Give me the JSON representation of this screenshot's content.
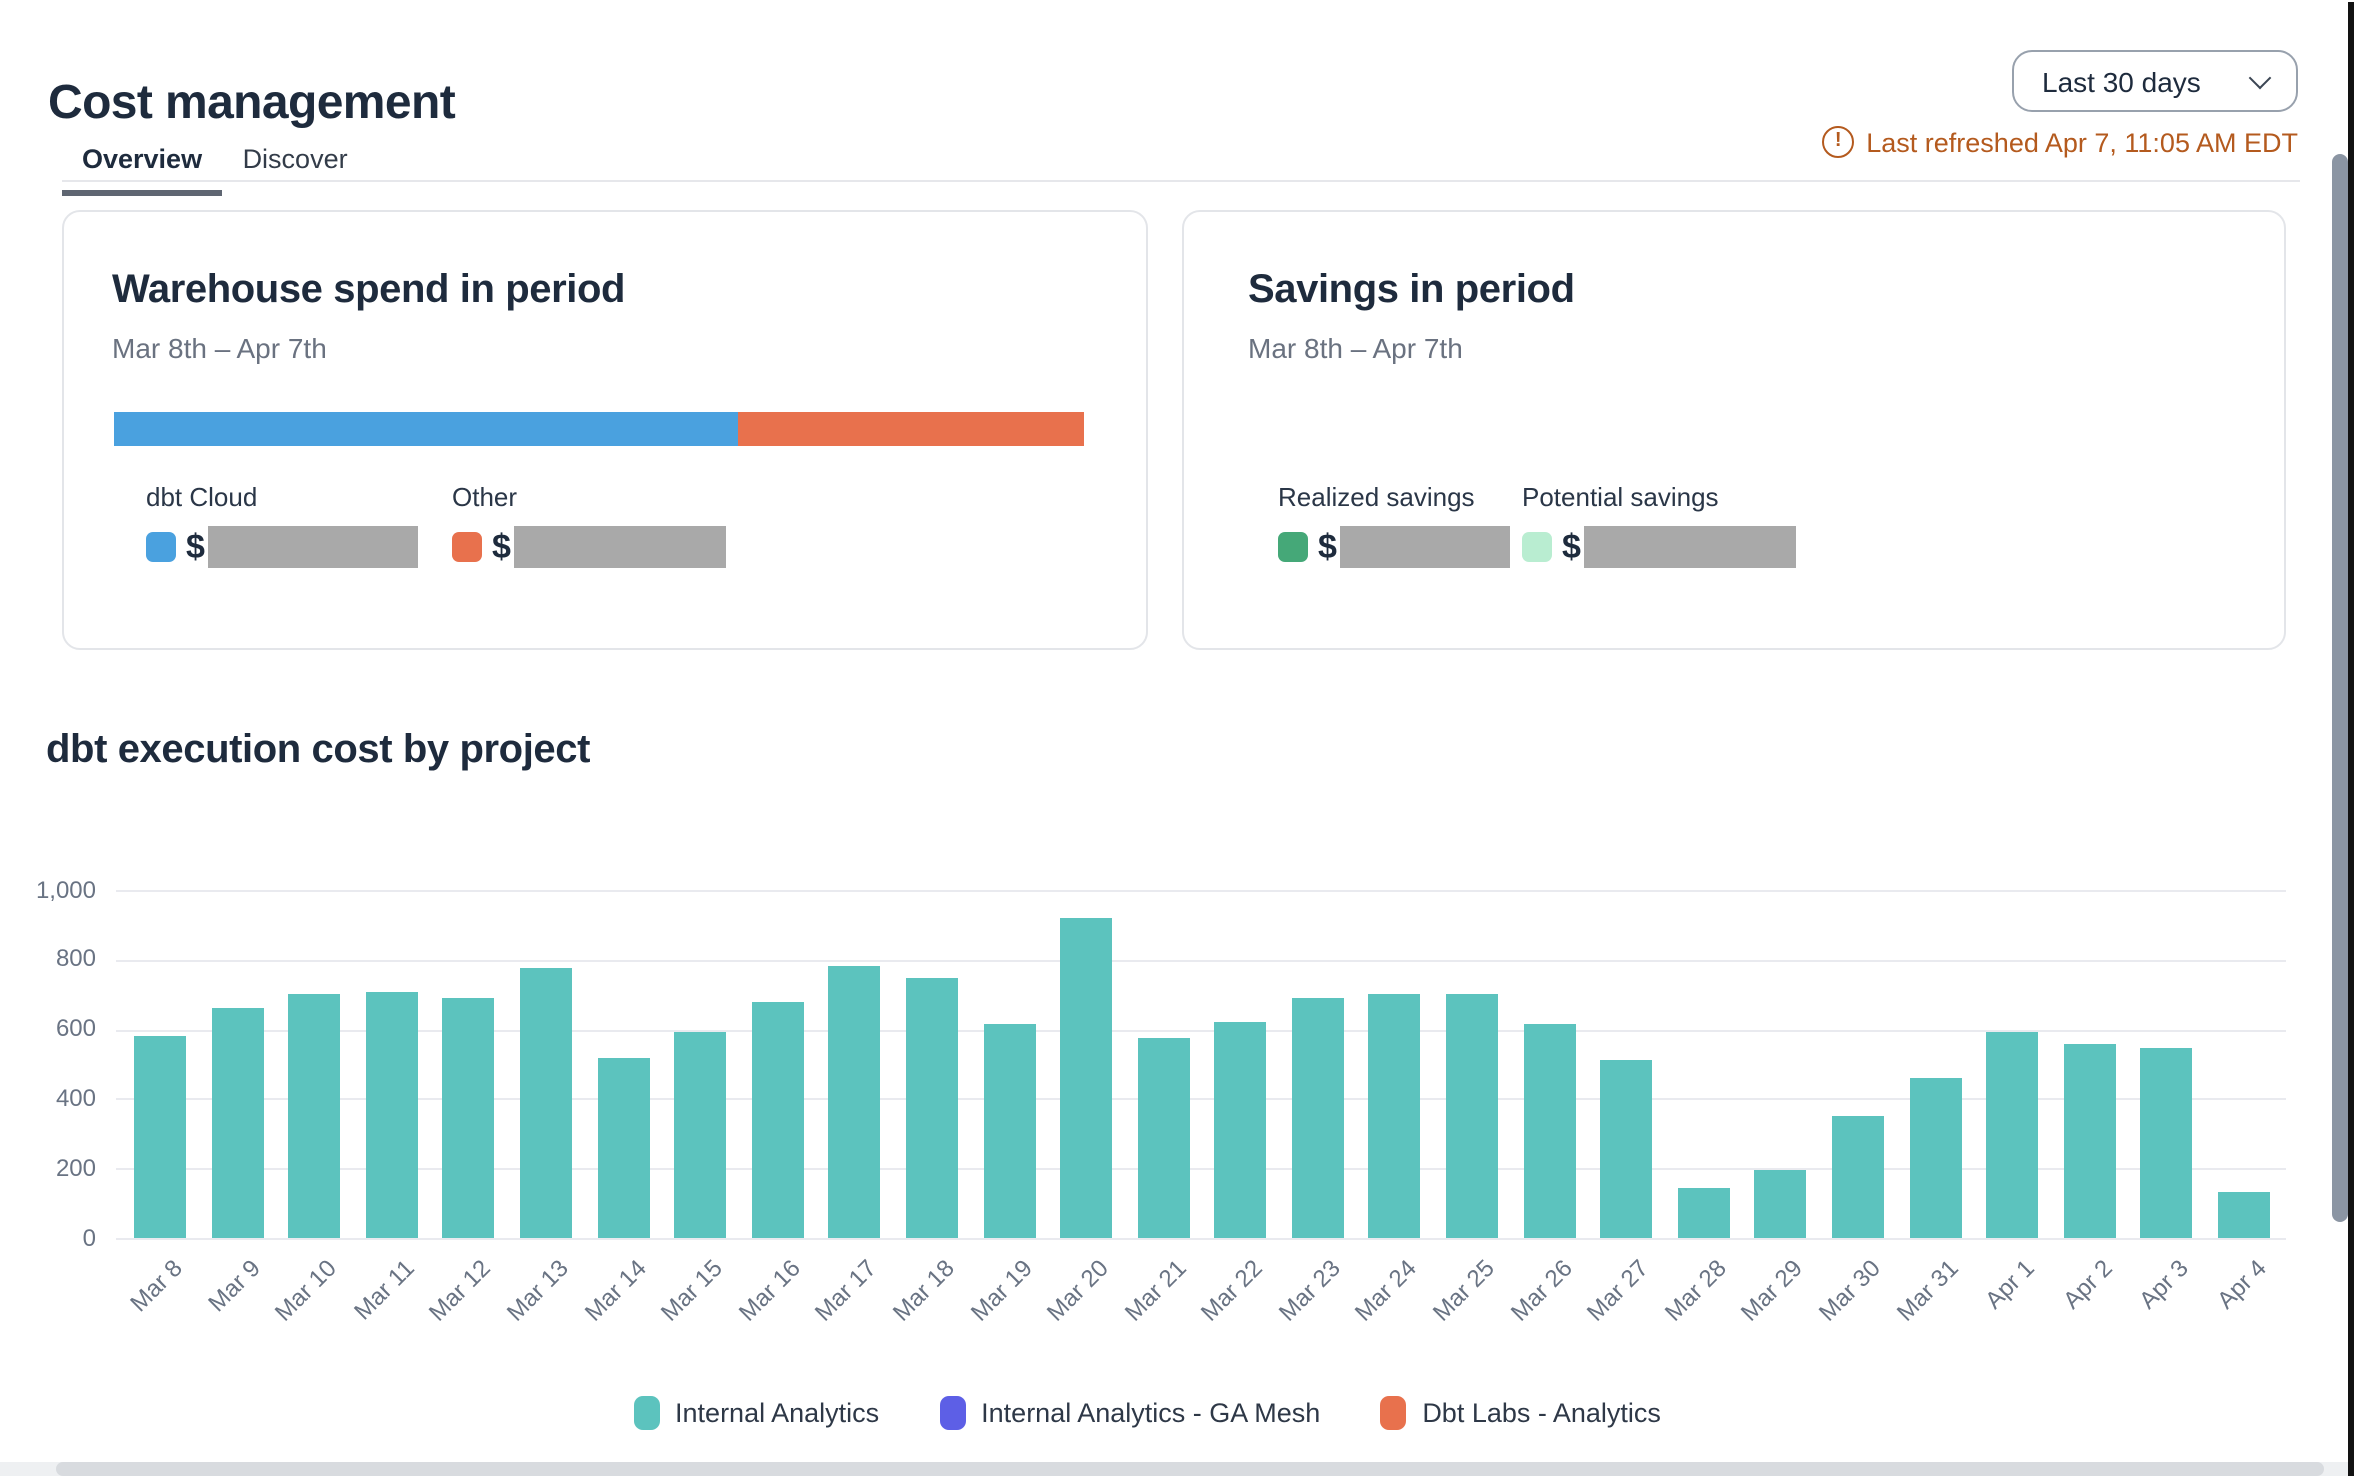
{
  "header": {
    "title": "Cost management",
    "period_select": {
      "value": "Last 30 days"
    },
    "last_refreshed": "Last refreshed Apr 7, 11:05 AM EDT"
  },
  "tabs": {
    "overview": "Overview",
    "discover": "Discover"
  },
  "warehouse_card": {
    "title": "Warehouse spend in period",
    "subtitle": "Mar 8th – Apr 7th",
    "bar_segments": [
      {
        "name": "dbt Cloud",
        "color": "#4aa1df",
        "percent": 64.4
      },
      {
        "name": "Other",
        "color": "#e8714d",
        "percent": 35.6
      }
    ],
    "metrics": [
      {
        "label": "dbt Cloud",
        "swatch_color": "#4aa1df",
        "currency": "$",
        "value": "",
        "redacted": true
      },
      {
        "label": "Other",
        "swatch_color": "#e8714d",
        "currency": "$",
        "value": "",
        "redacted": true
      }
    ]
  },
  "savings_card": {
    "title": "Savings in period",
    "subtitle": "Mar 8th – Apr 7th",
    "metrics": [
      {
        "label": "Realized savings",
        "swatch_color": "#45a878",
        "currency": "$",
        "value": "",
        "redacted": true
      },
      {
        "label": "Potential savings",
        "swatch_color": "#b9edd1",
        "currency": "$",
        "value": "",
        "redacted": true
      }
    ]
  },
  "chart_data": {
    "type": "bar",
    "title": "dbt execution cost by project",
    "categories": [
      "Mar 8",
      "Mar 9",
      "Mar 10",
      "Mar 11",
      "Mar 12",
      "Mar 13",
      "Mar 14",
      "Mar 15",
      "Mar 16",
      "Mar 17",
      "Mar 18",
      "Mar 19",
      "Mar 20",
      "Mar 21",
      "Mar 22",
      "Mar 23",
      "Mar 24",
      "Mar 25",
      "Mar 26",
      "Mar 27",
      "Mar 28",
      "Mar 29",
      "Mar 30",
      "Mar 31",
      "Apr 1",
      "Apr 2",
      "Apr 3",
      "Apr 4"
    ],
    "series": [
      {
        "name": "Internal Analytics",
        "color": "#5cc3be",
        "values": [
          580,
          660,
          700,
          705,
          690,
          775,
          515,
          590,
          680,
          780,
          745,
          615,
          920,
          575,
          620,
          690,
          700,
          700,
          615,
          510,
          145,
          195,
          350,
          460,
          590,
          555,
          545,
          135
        ]
      },
      {
        "name": "Internal Analytics - GA Mesh",
        "color": "#5d5fe6",
        "values": [
          0,
          0,
          0,
          0,
          0,
          0,
          0,
          0,
          0,
          0,
          0,
          0,
          0,
          0,
          0,
          0,
          0,
          0,
          0,
          0,
          0,
          0,
          0,
          0,
          0,
          0,
          0,
          0
        ]
      },
      {
        "name": "Dbt Labs - Analytics",
        "color": "#e8714d",
        "values": [
          0,
          0,
          0,
          0,
          0,
          0,
          0,
          0,
          0,
          0,
          0,
          0,
          0,
          0,
          0,
          0,
          0,
          0,
          0,
          0,
          0,
          0,
          0,
          0,
          0,
          0,
          0,
          0
        ]
      }
    ],
    "xlabel": "",
    "ylabel": "",
    "ylim": [
      0,
      1000
    ],
    "yticks": [
      0,
      200,
      400,
      600,
      800,
      1000
    ],
    "ytick_labels": [
      "0",
      "200",
      "400",
      "600",
      "800",
      "1,000"
    ],
    "grid": true,
    "legend_position": "bottom"
  }
}
